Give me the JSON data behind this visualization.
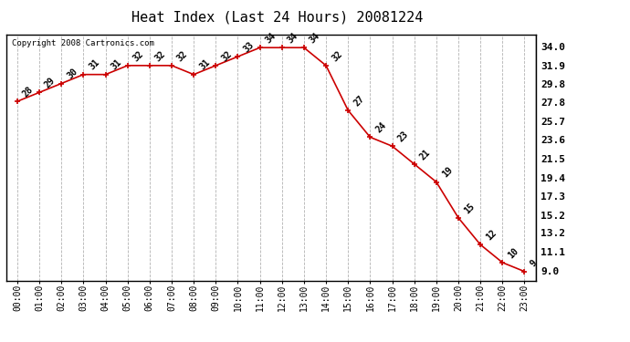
{
  "title": "Heat Index (Last 24 Hours) 20081224",
  "copyright": "Copyright 2008 Cartronics.com",
  "hours": [
    "00:00",
    "01:00",
    "02:00",
    "03:00",
    "04:00",
    "05:00",
    "06:00",
    "07:00",
    "08:00",
    "09:00",
    "10:00",
    "11:00",
    "12:00",
    "13:00",
    "14:00",
    "15:00",
    "16:00",
    "17:00",
    "18:00",
    "19:00",
    "20:00",
    "21:00",
    "22:00",
    "23:00"
  ],
  "values": [
    28,
    29,
    30,
    31,
    31,
    32,
    32,
    32,
    31,
    32,
    33,
    34,
    34,
    34,
    32,
    27,
    24,
    23,
    21,
    19,
    15,
    12,
    10,
    9
  ],
  "line_color": "#cc0000",
  "marker_color": "#cc0000",
  "bg_color": "#ffffff",
  "grid_color": "#aaaaaa",
  "ylim": [
    8.0,
    35.5
  ],
  "yticks_right": [
    34.0,
    31.9,
    29.8,
    27.8,
    25.7,
    23.6,
    21.5,
    19.4,
    17.3,
    15.2,
    13.2,
    11.1,
    9.0
  ],
  "title_fontsize": 11,
  "label_fontsize": 7,
  "tick_fontsize": 7,
  "copyright_fontsize": 6.5
}
